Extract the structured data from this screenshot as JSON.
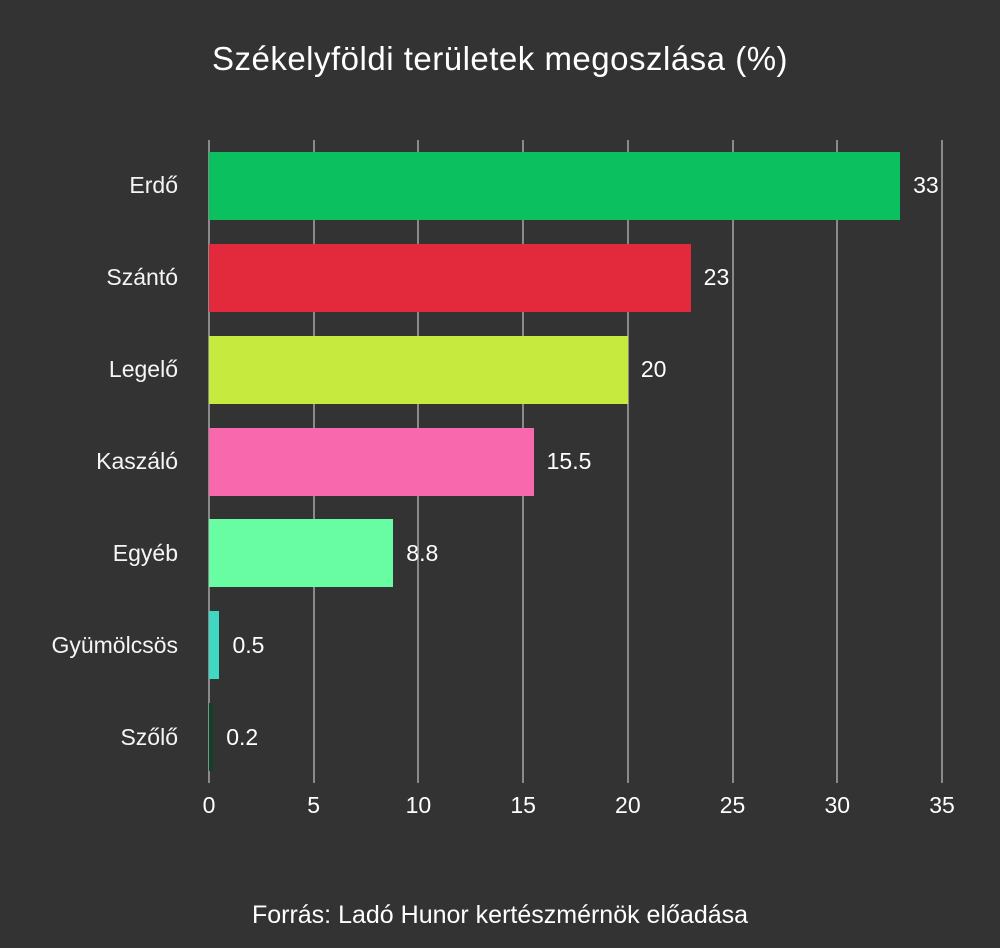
{
  "title": "Székelyföldi területek megoszlása (%)",
  "footer": "Forrás: Ladó Hunor kertészmérnök előadása",
  "colors": {
    "background": "#333333",
    "grid": "#8a8a8a",
    "text": "#ffffff"
  },
  "chart_data": {
    "type": "bar",
    "orientation": "horizontal",
    "title": "Székelyföldi területek megoszlása (%)",
    "xlabel": "",
    "ylabel": "",
    "categories": [
      "Erdő",
      "Szántó",
      "Legelő",
      "Kaszáló",
      "Egyéb",
      "Gyümölcsös",
      "Szőlő"
    ],
    "values": [
      33,
      23,
      20,
      15.5,
      8.8,
      0.5,
      0.2
    ],
    "value_labels": [
      "33",
      "23",
      "20",
      "15.5",
      "8.8",
      "0.5",
      "0.2"
    ],
    "bar_colors": [
      "#0bc05e",
      "#e3293c",
      "#c6eb3e",
      "#f768ac",
      "#68fda2",
      "#3fd9c3",
      "#11402a"
    ],
    "xlim": [
      0,
      35
    ],
    "x_ticks": [
      "0",
      "5",
      "10",
      "15",
      "20",
      "25",
      "30",
      "35"
    ],
    "grid": true,
    "legend": false,
    "source_caption": "Forrás: Ladó Hunor kertészmérnök előadása"
  }
}
